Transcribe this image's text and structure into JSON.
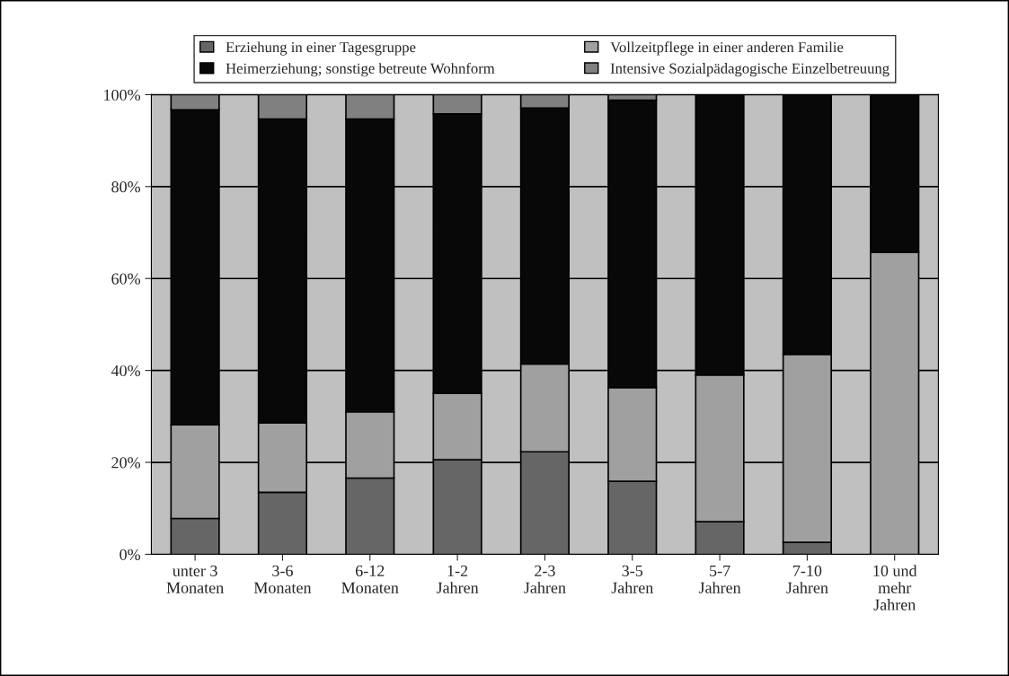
{
  "chart_data": {
    "type": "bar",
    "stacked": true,
    "categories": [
      "unter 3\nMonaten",
      "3-6\nMonaten",
      "6-12\nMonaten",
      "1-2\nJahren",
      "2-3\nJahren",
      "3-5\nJahren",
      "5-7\nJahren",
      "7-10\nJahren",
      "10 und\nmehr\nJahren"
    ],
    "series": [
      {
        "name": "Erziehung in einer Tagesgruppe",
        "color": "#666666",
        "values": [
          7.8,
          13.5,
          16.6,
          20.6,
          22.3,
          15.9,
          7.1,
          2.6,
          null
        ]
      },
      {
        "name": "Vollzeitpflege in einer anderen Familie",
        "color": "#a0a0a0",
        "values": [
          20.4,
          15.1,
          14.4,
          14.4,
          19.1,
          20.4,
          31.9,
          40.9,
          65.7
        ]
      },
      {
        "name": "Heimerziehung; sonstige betreute Wohnform",
        "color": "#080808",
        "values": [
          68.5,
          66.1,
          63.7,
          60.8,
          55.7,
          62.5,
          61.0,
          56.5,
          34.3
        ]
      },
      {
        "name": "Intensive Sozialpädagogische Einzelbetreuung",
        "color": "#808080",
        "values": [
          3.3,
          5.3,
          5.3,
          4.2,
          2.9,
          1.2,
          null,
          null,
          null
        ]
      }
    ],
    "ylim": [
      0,
      100
    ],
    "yticks": [
      {
        "value": 0,
        "label": "0%"
      },
      {
        "value": 20,
        "label": "20%"
      },
      {
        "value": 40,
        "label": "40%"
      },
      {
        "value": 60,
        "label": "60%"
      },
      {
        "value": 80,
        "label": "80%"
      },
      {
        "value": 100,
        "label": "100%"
      }
    ],
    "grid": "y",
    "legend": "top"
  }
}
